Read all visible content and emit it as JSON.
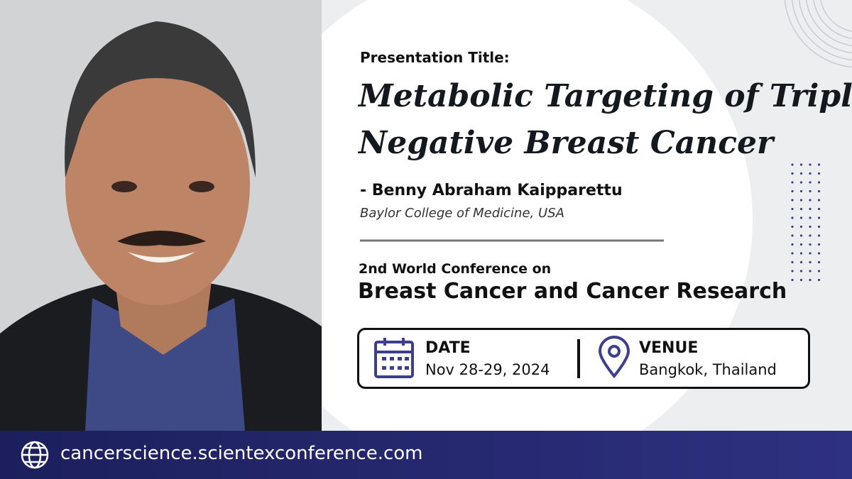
{
  "header": {
    "label": "Presentation Title:",
    "title_lines": [
      "Metabolic Targeting of Triple",
      "Negative Breast Cancer"
    ]
  },
  "speaker": {
    "name": "- Benny Abraham Kaipparettu",
    "affiliation": "Baylor College of Medicine, USA"
  },
  "conference": {
    "edition": "2nd World Conference on",
    "name": "Breast Cancer and Cancer Research"
  },
  "details": {
    "date_label": "DATE",
    "date": "Nov 28-29, 2024",
    "venue_label": "VENUE",
    "venue": "Bangkok, Thailand"
  },
  "footer": {
    "url": "cancerscience.scientexconference.com"
  }
}
